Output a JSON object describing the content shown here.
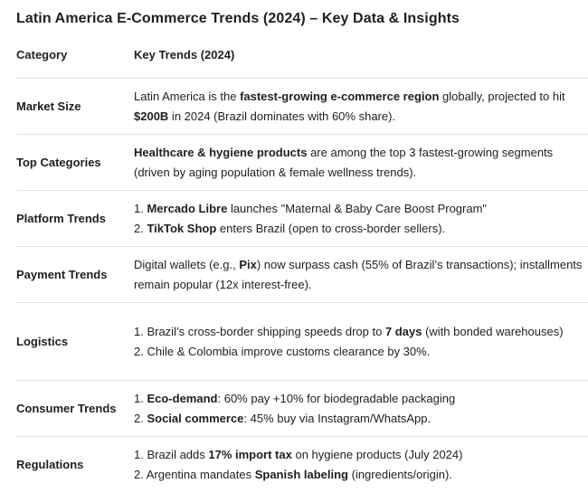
{
  "title": "Latin America E-Commerce Trends (2024) – Key Data & Insights",
  "headers": {
    "category": "Category",
    "trends": "Key Trends (2024)"
  },
  "rows": [
    {
      "category": "Market Size",
      "lines": [
        [
          {
            "t": "Latin America is the ",
            "b": false
          },
          {
            "t": "fastest-growing e-commerce region",
            "b": true
          },
          {
            "t": " globally, projected to hit ",
            "b": false
          },
          {
            "t": "$200B",
            "b": true
          },
          {
            "t": " in 2024 (Brazil dominates with 60% share).",
            "b": false
          }
        ]
      ]
    },
    {
      "category": "Top Categories",
      "lines": [
        [
          {
            "t": "Healthcare & hygiene products",
            "b": true
          },
          {
            "t": " are among the top 3 fastest-growing segments (driven by aging population & female wellness trends).",
            "b": false
          }
        ]
      ]
    },
    {
      "category": "Platform Trends",
      "lines": [
        [
          {
            "t": "1. ",
            "b": false
          },
          {
            "t": "Mercado Libre",
            "b": true
          },
          {
            "t": " launches \"Maternal & Baby Care Boost Program\"",
            "b": false
          }
        ],
        [
          {
            "t": "2. ",
            "b": false
          },
          {
            "t": "TikTok Shop",
            "b": true
          },
          {
            "t": " enters Brazil (open to cross-border sellers).",
            "b": false
          }
        ]
      ]
    },
    {
      "category": "Payment Trends",
      "lines": [
        [
          {
            "t": "Digital wallets (e.g., ",
            "b": false
          },
          {
            "t": "Pix",
            "b": true
          },
          {
            "t": ") now surpass cash (55% of Brazil’s transactions); installments remain popular (12x interest-free).",
            "b": false
          }
        ]
      ]
    },
    {
      "category": "Logistics",
      "lines": [
        [
          {
            "t": "1. Brazil’s cross-border shipping speeds drop to ",
            "b": false
          },
          {
            "t": "7 days",
            "b": true
          },
          {
            "t": " (with bonded warehouses)",
            "b": false
          }
        ],
        [
          {
            "t": "2. Chile & Colombia improve customs clearance by 30%.",
            "b": false
          }
        ]
      ]
    },
    {
      "category": "Consumer Trends",
      "lines": [
        [
          {
            "t": "1. ",
            "b": false
          },
          {
            "t": "Eco-demand",
            "b": true
          },
          {
            "t": ": 60% pay +10% for biodegradable packaging",
            "b": false
          }
        ],
        [
          {
            "t": "2. ",
            "b": false
          },
          {
            "t": "Social commerce",
            "b": true
          },
          {
            "t": ": 45% buy via Instagram/WhatsApp.",
            "b": false
          }
        ]
      ]
    },
    {
      "category": "Regulations",
      "lines": [
        [
          {
            "t": "1. Brazil adds ",
            "b": false
          },
          {
            "t": "17% import tax",
            "b": true
          },
          {
            "t": " on hygiene products (July 2024)",
            "b": false
          }
        ],
        [
          {
            "t": "2. Argentina mandates ",
            "b": false
          },
          {
            "t": "Spanish labeling",
            "b": true
          },
          {
            "t": " (ingredients/origin).",
            "b": false
          }
        ]
      ]
    }
  ]
}
